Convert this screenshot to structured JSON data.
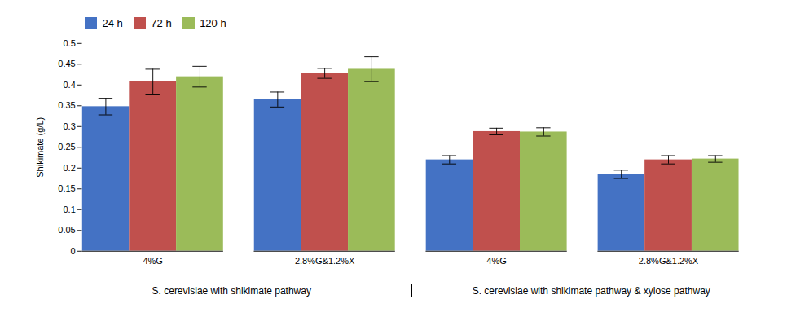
{
  "chart_data": {
    "type": "bar",
    "categories": [
      "4%G",
      "2.8%G&1.2%X",
      "4%G",
      "2.8%G&1.2%X"
    ],
    "series": [
      {
        "name": "24 h",
        "color": "#4472C4",
        "values": [
          0.348,
          0.365,
          0.22,
          0.185
        ],
        "errors": [
          0.02,
          0.018,
          0.01,
          0.01
        ]
      },
      {
        "name": "72 h",
        "color": "#C0504D",
        "values": [
          0.408,
          0.428,
          0.288,
          0.22
        ],
        "errors": [
          0.03,
          0.012,
          0.008,
          0.01
        ]
      },
      {
        "name": "120 h",
        "color": "#9BBB59",
        "values": [
          0.42,
          0.438,
          0.287,
          0.222
        ],
        "errors": [
          0.025,
          0.03,
          0.01,
          0.008
        ]
      }
    ],
    "annotations": [
      "S. cerevisiae with shikimate pathway",
      "S. cerevisiae with shikimate pathway & xylose pathway"
    ],
    "ylabel": "Shikimate (g/L)",
    "ylim": [
      0,
      0.5
    ],
    "yticks": [
      0,
      0.05,
      0.1,
      0.15,
      0.2,
      0.25,
      0.3,
      0.35,
      0.4,
      0.45,
      0.5
    ],
    "legend": "upper left",
    "grid": false
  }
}
